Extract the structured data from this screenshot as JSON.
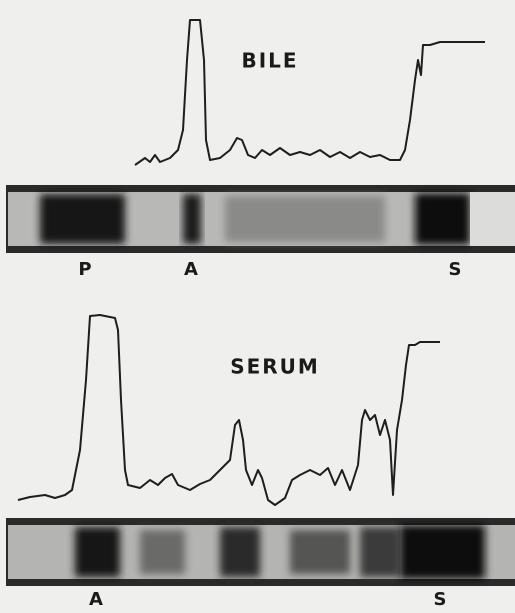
{
  "panels": [
    {
      "title": "BILE",
      "markers": [
        "P",
        "A",
        "S"
      ]
    },
    {
      "title": "SERUM",
      "markers": [
        "A",
        "S"
      ]
    }
  ]
}
